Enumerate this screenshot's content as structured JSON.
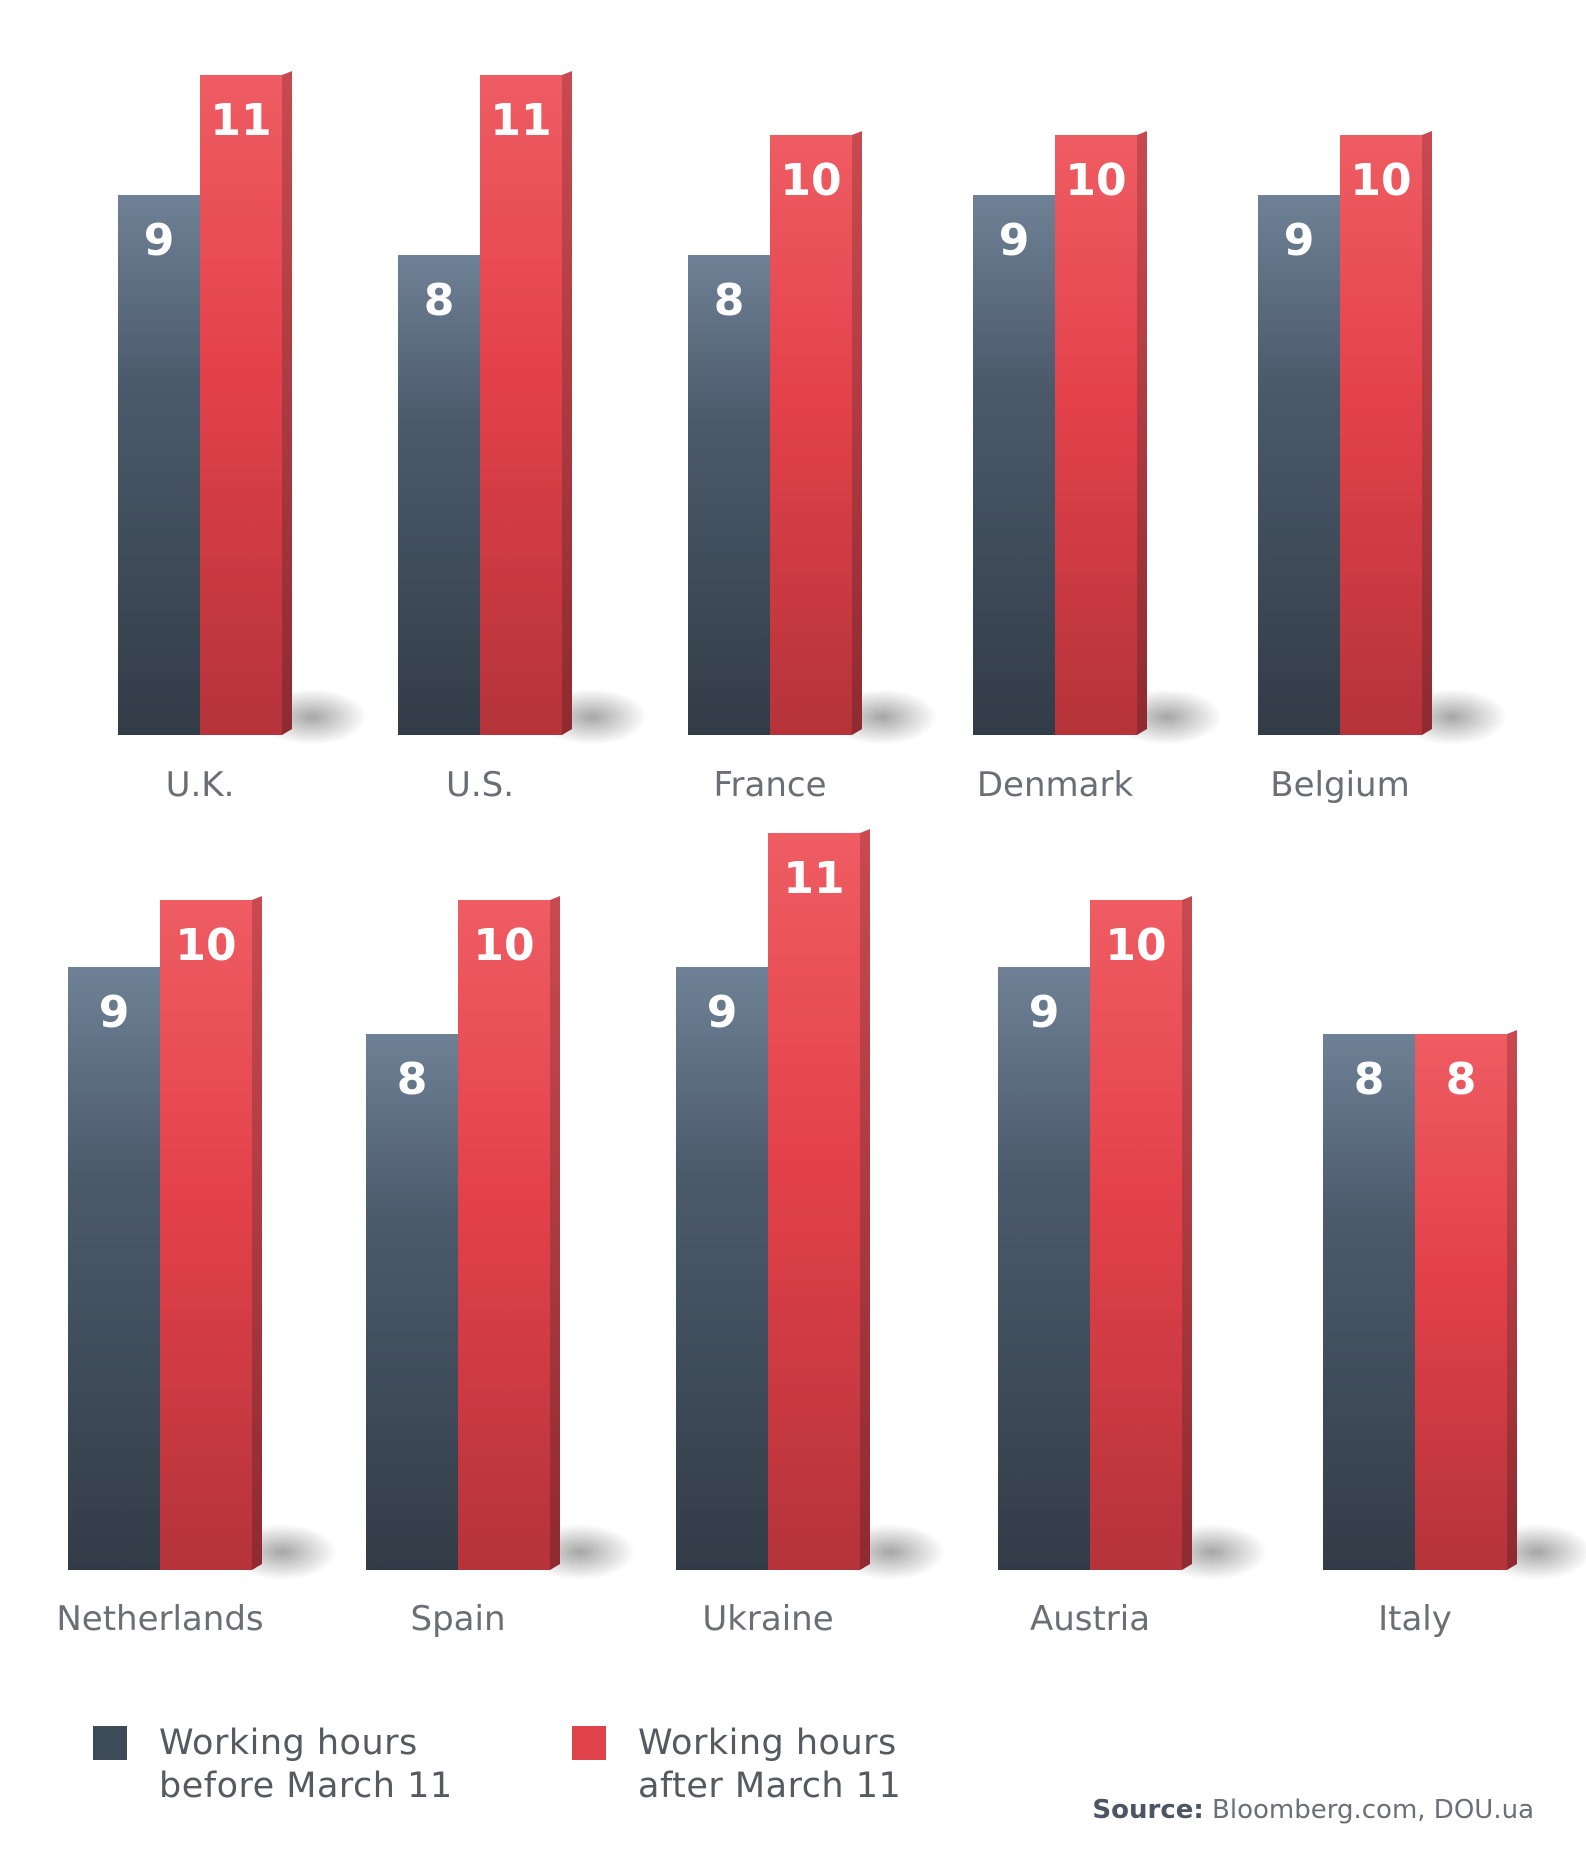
{
  "chart_data": {
    "type": "bar",
    "series": [
      {
        "name": "Working hours before March 11",
        "color": "#3d4a58"
      },
      {
        "name": "Working hours after March 11",
        "color": "#e0434b"
      }
    ],
    "categories": [
      "U.K.",
      "U.S.",
      "France",
      "Denmark",
      "Belgium",
      "Netherlands",
      "Spain",
      "Ukraine",
      "Austria",
      "Italy"
    ],
    "values_before": [
      9,
      8,
      8,
      9,
      9,
      9,
      8,
      9,
      9,
      8
    ],
    "values_after": [
      11,
      11,
      10,
      10,
      10,
      10,
      10,
      11,
      10,
      8
    ],
    "value_labels_before": [
      "9",
      "8",
      "8",
      "9",
      "9",
      "9",
      "8",
      "9",
      "9",
      "8"
    ],
    "value_labels_after": [
      "11",
      "11",
      "10",
      "10",
      "10",
      "10",
      "10",
      "11",
      "10",
      "8"
    ]
  },
  "legend": {
    "before_line1": "Working hours",
    "before_line2": "before March 11",
    "after_line1": "Working hours",
    "after_line2": "after March 11"
  },
  "source": {
    "label": "Source:",
    "text": "Bloomberg.com, DOU.ua"
  }
}
